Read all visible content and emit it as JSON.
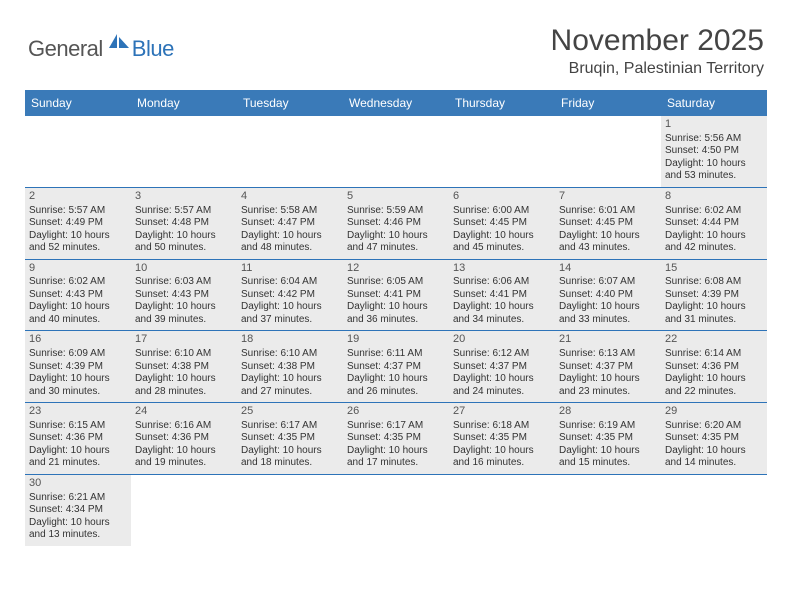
{
  "logo": {
    "general": "General",
    "blue": "Blue"
  },
  "title": {
    "month": "November 2025",
    "location": "Bruqin, Palestinian Territory"
  },
  "colors": {
    "header_bg": "#3a7ab8",
    "border": "#2d73b8",
    "shaded": "#ebebeb",
    "text": "#333333"
  },
  "dayNames": [
    "Sunday",
    "Monday",
    "Tuesday",
    "Wednesday",
    "Thursday",
    "Friday",
    "Saturday"
  ],
  "weeks": [
    [
      {
        "day": null
      },
      {
        "day": null
      },
      {
        "day": null
      },
      {
        "day": null
      },
      {
        "day": null
      },
      {
        "day": null
      },
      {
        "day": 1,
        "sunrise": "5:56 AM",
        "sunset": "4:50 PM",
        "daylight_h": 10,
        "daylight_m": 53
      }
    ],
    [
      {
        "day": 2,
        "sunrise": "5:57 AM",
        "sunset": "4:49 PM",
        "daylight_h": 10,
        "daylight_m": 52
      },
      {
        "day": 3,
        "sunrise": "5:57 AM",
        "sunset": "4:48 PM",
        "daylight_h": 10,
        "daylight_m": 50
      },
      {
        "day": 4,
        "sunrise": "5:58 AM",
        "sunset": "4:47 PM",
        "daylight_h": 10,
        "daylight_m": 48
      },
      {
        "day": 5,
        "sunrise": "5:59 AM",
        "sunset": "4:46 PM",
        "daylight_h": 10,
        "daylight_m": 47
      },
      {
        "day": 6,
        "sunrise": "6:00 AM",
        "sunset": "4:45 PM",
        "daylight_h": 10,
        "daylight_m": 45
      },
      {
        "day": 7,
        "sunrise": "6:01 AM",
        "sunset": "4:45 PM",
        "daylight_h": 10,
        "daylight_m": 43
      },
      {
        "day": 8,
        "sunrise": "6:02 AM",
        "sunset": "4:44 PM",
        "daylight_h": 10,
        "daylight_m": 42
      }
    ],
    [
      {
        "day": 9,
        "sunrise": "6:02 AM",
        "sunset": "4:43 PM",
        "daylight_h": 10,
        "daylight_m": 40
      },
      {
        "day": 10,
        "sunrise": "6:03 AM",
        "sunset": "4:43 PM",
        "daylight_h": 10,
        "daylight_m": 39
      },
      {
        "day": 11,
        "sunrise": "6:04 AM",
        "sunset": "4:42 PM",
        "daylight_h": 10,
        "daylight_m": 37
      },
      {
        "day": 12,
        "sunrise": "6:05 AM",
        "sunset": "4:41 PM",
        "daylight_h": 10,
        "daylight_m": 36
      },
      {
        "day": 13,
        "sunrise": "6:06 AM",
        "sunset": "4:41 PM",
        "daylight_h": 10,
        "daylight_m": 34
      },
      {
        "day": 14,
        "sunrise": "6:07 AM",
        "sunset": "4:40 PM",
        "daylight_h": 10,
        "daylight_m": 33
      },
      {
        "day": 15,
        "sunrise": "6:08 AM",
        "sunset": "4:39 PM",
        "daylight_h": 10,
        "daylight_m": 31
      }
    ],
    [
      {
        "day": 16,
        "sunrise": "6:09 AM",
        "sunset": "4:39 PM",
        "daylight_h": 10,
        "daylight_m": 30
      },
      {
        "day": 17,
        "sunrise": "6:10 AM",
        "sunset": "4:38 PM",
        "daylight_h": 10,
        "daylight_m": 28
      },
      {
        "day": 18,
        "sunrise": "6:10 AM",
        "sunset": "4:38 PM",
        "daylight_h": 10,
        "daylight_m": 27
      },
      {
        "day": 19,
        "sunrise": "6:11 AM",
        "sunset": "4:37 PM",
        "daylight_h": 10,
        "daylight_m": 26
      },
      {
        "day": 20,
        "sunrise": "6:12 AM",
        "sunset": "4:37 PM",
        "daylight_h": 10,
        "daylight_m": 24
      },
      {
        "day": 21,
        "sunrise": "6:13 AM",
        "sunset": "4:37 PM",
        "daylight_h": 10,
        "daylight_m": 23
      },
      {
        "day": 22,
        "sunrise": "6:14 AM",
        "sunset": "4:36 PM",
        "daylight_h": 10,
        "daylight_m": 22
      }
    ],
    [
      {
        "day": 23,
        "sunrise": "6:15 AM",
        "sunset": "4:36 PM",
        "daylight_h": 10,
        "daylight_m": 21
      },
      {
        "day": 24,
        "sunrise": "6:16 AM",
        "sunset": "4:36 PM",
        "daylight_h": 10,
        "daylight_m": 19
      },
      {
        "day": 25,
        "sunrise": "6:17 AM",
        "sunset": "4:35 PM",
        "daylight_h": 10,
        "daylight_m": 18
      },
      {
        "day": 26,
        "sunrise": "6:17 AM",
        "sunset": "4:35 PM",
        "daylight_h": 10,
        "daylight_m": 17
      },
      {
        "day": 27,
        "sunrise": "6:18 AM",
        "sunset": "4:35 PM",
        "daylight_h": 10,
        "daylight_m": 16
      },
      {
        "day": 28,
        "sunrise": "6:19 AM",
        "sunset": "4:35 PM",
        "daylight_h": 10,
        "daylight_m": 15
      },
      {
        "day": 29,
        "sunrise": "6:20 AM",
        "sunset": "4:35 PM",
        "daylight_h": 10,
        "daylight_m": 14
      }
    ],
    [
      {
        "day": 30,
        "sunrise": "6:21 AM",
        "sunset": "4:34 PM",
        "daylight_h": 10,
        "daylight_m": 13
      },
      {
        "day": null
      },
      {
        "day": null
      },
      {
        "day": null
      },
      {
        "day": null
      },
      {
        "day": null
      },
      {
        "day": null
      }
    ]
  ],
  "labels": {
    "sunrise": "Sunrise:",
    "sunset": "Sunset:",
    "daylight1": "Daylight:",
    "hours": "hours",
    "and": "and",
    "minutes": "minutes."
  }
}
